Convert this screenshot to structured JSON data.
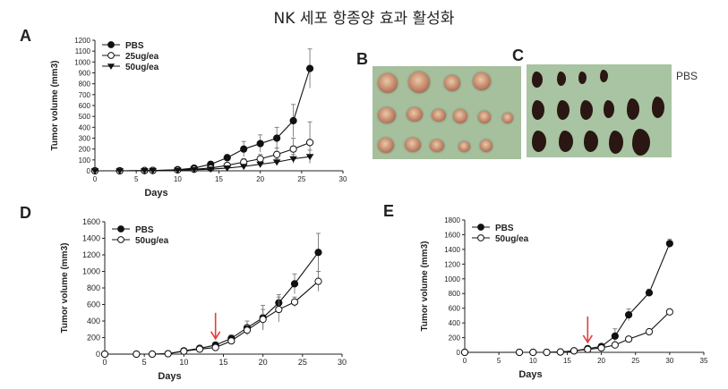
{
  "figure": {
    "title": "NK 세포 항종양 효과 활성화",
    "panels": {
      "a": "A",
      "b": "B",
      "c": "C",
      "d": "D",
      "e": "E"
    },
    "photo_c_label": "PBS",
    "photos": {
      "b": "tumor photographs",
      "c": "spleen photographs"
    }
  },
  "chart_data": [
    {
      "id": "A",
      "type": "line",
      "xlabel": "Days",
      "ylabel": "Tumor volume (mm3)",
      "xlim": [
        0,
        30
      ],
      "ylim": [
        0,
        1200
      ],
      "xticks": [
        0,
        5,
        10,
        15,
        20,
        25,
        30
      ],
      "yticks": [
        0,
        100,
        200,
        300,
        400,
        500,
        600,
        700,
        800,
        900,
        1000,
        1100,
        1200
      ],
      "legend": "top-left",
      "series": [
        {
          "name": "PBS",
          "marker": "filled-circle",
          "x": [
            0,
            3,
            6,
            7,
            10,
            12,
            14,
            16,
            18,
            20,
            22,
            24,
            26
          ],
          "y": [
            0,
            0,
            2,
            3,
            10,
            25,
            60,
            120,
            200,
            250,
            300,
            460,
            940
          ],
          "err": [
            0,
            0,
            0,
            0,
            5,
            10,
            20,
            30,
            70,
            80,
            100,
            150,
            180
          ]
        },
        {
          "name": "25ug/ea",
          "marker": "open-circle",
          "x": [
            0,
            3,
            6,
            7,
            10,
            12,
            14,
            16,
            18,
            20,
            22,
            24,
            26
          ],
          "y": [
            0,
            0,
            2,
            3,
            8,
            15,
            25,
            50,
            80,
            110,
            150,
            200,
            260
          ],
          "err": [
            0,
            0,
            0,
            0,
            3,
            5,
            10,
            20,
            30,
            40,
            60,
            100,
            190
          ]
        },
        {
          "name": "50ug/ea",
          "marker": "filled-triangle",
          "x": [
            0,
            3,
            6,
            7,
            10,
            12,
            14,
            16,
            18,
            20,
            22,
            24,
            26
          ],
          "y": [
            0,
            0,
            1,
            2,
            5,
            10,
            15,
            25,
            40,
            60,
            80,
            110,
            130
          ],
          "err": [
            0,
            0,
            0,
            0,
            2,
            4,
            6,
            10,
            15,
            20,
            30,
            40,
            60
          ]
        }
      ]
    },
    {
      "id": "D",
      "type": "line",
      "xlabel": "Days",
      "ylabel": "Tumor volume (mm3)",
      "xlim": [
        0,
        30
      ],
      "ylim": [
        0,
        1600
      ],
      "xticks": [
        0,
        5,
        10,
        15,
        20,
        25,
        30
      ],
      "yticks": [
        0,
        200,
        400,
        600,
        800,
        1000,
        1200,
        1400,
        1600
      ],
      "legend": "top-left",
      "arrow_day": 14,
      "series": [
        {
          "name": "PBS",
          "marker": "filled-circle",
          "x": [
            0,
            4,
            6,
            8,
            10,
            12,
            14,
            16,
            18,
            20,
            22,
            24,
            27
          ],
          "y": [
            0,
            0,
            0,
            5,
            40,
            70,
            110,
            190,
            320,
            440,
            620,
            850,
            1230
          ],
          "err": [
            0,
            0,
            0,
            0,
            10,
            20,
            30,
            40,
            80,
            150,
            100,
            120,
            230
          ]
        },
        {
          "name": "50ug/ea",
          "marker": "open-circle",
          "x": [
            0,
            4,
            6,
            8,
            10,
            12,
            14,
            16,
            18,
            20,
            22,
            24,
            27
          ],
          "y": [
            0,
            0,
            0,
            5,
            35,
            60,
            80,
            160,
            290,
            420,
            540,
            630,
            880
          ],
          "err": [
            0,
            0,
            0,
            0,
            10,
            15,
            20,
            30,
            60,
            120,
            150,
            60,
            120
          ]
        }
      ]
    },
    {
      "id": "E",
      "type": "line",
      "xlabel": "Days",
      "ylabel": "Tumor volume (mm3)",
      "xlim": [
        0,
        35
      ],
      "ylim": [
        0,
        1800
      ],
      "xticks": [
        0,
        5,
        10,
        15,
        20,
        25,
        30,
        35
      ],
      "yticks": [
        0,
        200,
        400,
        600,
        800,
        1000,
        1200,
        1400,
        1600,
        1800
      ],
      "legend": "top-left",
      "arrow_day": 18,
      "series": [
        {
          "name": "PBS",
          "marker": "filled-circle",
          "x": [
            0,
            8,
            10,
            12,
            14,
            16,
            18,
            20,
            22,
            24,
            27,
            30
          ],
          "y": [
            0,
            0,
            0,
            0,
            5,
            20,
            50,
            80,
            220,
            510,
            810,
            1480
          ],
          "err": [
            0,
            0,
            0,
            0,
            0,
            5,
            10,
            20,
            100,
            80,
            50,
            60
          ]
        },
        {
          "name": "50ug/ea",
          "marker": "open-circle",
          "x": [
            0,
            8,
            10,
            12,
            14,
            16,
            18,
            20,
            22,
            24,
            27,
            30
          ],
          "y": [
            0,
            0,
            0,
            0,
            5,
            20,
            40,
            60,
            100,
            180,
            280,
            550
          ],
          "err": [
            0,
            0,
            0,
            0,
            0,
            5,
            5,
            10,
            20,
            30,
            30,
            30
          ]
        }
      ]
    }
  ]
}
